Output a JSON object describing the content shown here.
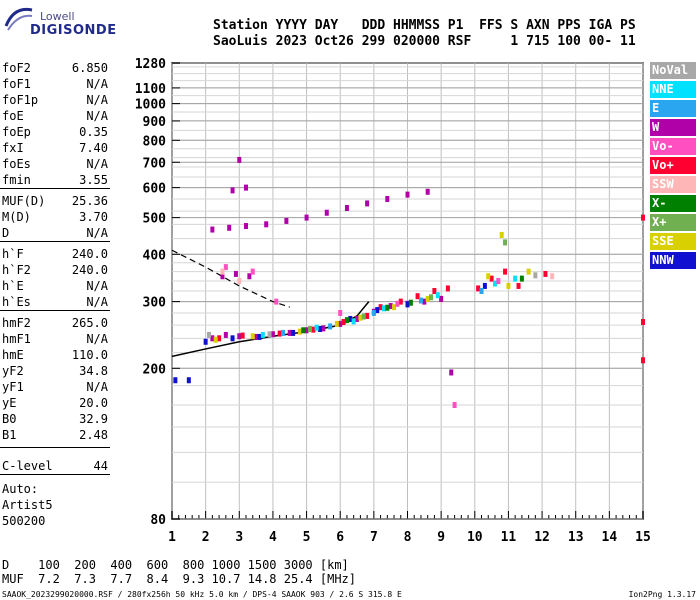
{
  "logo": {
    "top": "Lowell",
    "bottom": "DIGISONDE"
  },
  "header": {
    "line1": "Station YYYY DAY   DDD HHMMSS P1  FFS S AXN PPS IGA PS",
    "line2": "SaoLuis 2023 Oct26 299 020000 RSF     1 715 100 00- 11"
  },
  "params": [
    {
      "label": "foF2",
      "value": "6.850"
    },
    {
      "label": "foF1",
      "value": "N/A"
    },
    {
      "label": "foF1p",
      "value": "N/A"
    },
    {
      "label": "foE",
      "value": "N/A"
    },
    {
      "label": "foEp",
      "value": "0.35"
    },
    {
      "label": "fxI",
      "value": "7.40"
    },
    {
      "label": "foEs",
      "value": "N/A"
    },
    {
      "label": "fmin",
      "value": "3.55"
    },
    {
      "label": "MUF(D)",
      "value": "25.36"
    },
    {
      "label": "M(D)",
      "value": "3.70"
    },
    {
      "label": "D",
      "value": "N/A"
    },
    {
      "label": "h`F",
      "value": "240.0"
    },
    {
      "label": "h`F2",
      "value": "240.0"
    },
    {
      "label": "h`E",
      "value": "N/A"
    },
    {
      "label": "h`Es",
      "value": "N/A"
    },
    {
      "label": "hmF2",
      "value": "265.0"
    },
    {
      "label": "hmF1",
      "value": "N/A"
    },
    {
      "label": "hmE",
      "value": "110.0"
    },
    {
      "label": "yF2",
      "value": "34.8"
    },
    {
      "label": "yF1",
      "value": "N/A"
    },
    {
      "label": "yE",
      "value": "20.0"
    },
    {
      "label": "B0",
      "value": "32.9"
    },
    {
      "label": "B1",
      "value": "2.48"
    },
    {
      "label": "C-level",
      "value": "44"
    }
  ],
  "auto": {
    "line1": "Auto:",
    "line2": "Artist5",
    "line3": "500200"
  },
  "legend": [
    {
      "label": "NoVal",
      "color": "#a8a8a8"
    },
    {
      "label": "NNE",
      "color": "#00e0ff"
    },
    {
      "label": "E",
      "color": "#2aa5f0"
    },
    {
      "label": "W",
      "color": "#b000a8"
    },
    {
      "label": "Vo-",
      "color": "#ff4fc0"
    },
    {
      "label": "Vo+",
      "color": "#ff0030"
    },
    {
      "label": "SSW",
      "color": "#ffb6b6"
    },
    {
      "label": "X-",
      "color": "#008000"
    },
    {
      "label": "X+",
      "color": "#70b050"
    },
    {
      "label": "SSE",
      "color": "#d8d000"
    },
    {
      "label": "NNW",
      "color": "#1010d0"
    }
  ],
  "bottom": {
    "d_row": "D    100  200  400  600  800 1000 1500 3000 [km]",
    "muf_row": "MUF  7.2  7.3  7.7  8.4  9.3 10.7 14.8 25.4 [MHz]"
  },
  "footer": {
    "left": "SAAOK_2023299020000.RSF / 280fx256h 50 kHz 5.0 km / DPS-4 SAAOK 903 / 2.6 S 315.8 E",
    "right": "Ion2Png 1.3.17"
  },
  "chart_data": {
    "type": "scatter",
    "x_ticks": [
      1,
      2,
      3,
      4,
      5,
      6,
      7,
      8,
      9,
      10,
      11,
      12,
      13,
      14,
      15
    ],
    "y_ticks": [
      80,
      200,
      300,
      400,
      500,
      600,
      700,
      800,
      900,
      1000,
      1100,
      1280
    ],
    "xlim": [
      1,
      15
    ],
    "ylim": [
      80,
      1280
    ],
    "y_scale": "log",
    "grid": true,
    "legend_position": "right",
    "series": [
      {
        "name": "W",
        "color": "#b000a8",
        "points": [
          [
            2.2,
            240
          ],
          [
            2.6,
            245
          ],
          [
            3.0,
            243
          ],
          [
            3.5,
            242
          ],
          [
            4.0,
            246
          ],
          [
            4.5,
            248
          ],
          [
            5.0,
            252
          ],
          [
            5.5,
            255
          ],
          [
            6.0,
            262
          ],
          [
            6.5,
            270
          ],
          [
            7.0,
            282
          ],
          [
            7.5,
            292
          ],
          [
            8.0,
            296
          ],
          [
            8.5,
            300
          ],
          [
            9.0,
            305
          ],
          [
            2.5,
            350
          ],
          [
            2.9,
            355
          ],
          [
            3.3,
            350
          ],
          [
            2.2,
            465
          ],
          [
            2.7,
            470
          ],
          [
            3.2,
            475
          ],
          [
            3.8,
            480
          ],
          [
            4.4,
            490
          ],
          [
            5.0,
            500
          ],
          [
            5.6,
            515
          ],
          [
            6.2,
            530
          ],
          [
            6.8,
            545
          ],
          [
            7.4,
            560
          ],
          [
            8.0,
            575
          ],
          [
            8.6,
            585
          ],
          [
            3.0,
            710
          ],
          [
            2.8,
            590
          ],
          [
            3.2,
            600
          ],
          [
            9.3,
            195
          ]
        ]
      },
      {
        "name": "Vo+",
        "color": "#ff0030",
        "points": [
          [
            2.4,
            240
          ],
          [
            3.1,
            244
          ],
          [
            4.2,
            247
          ],
          [
            5.2,
            253
          ],
          [
            6.1,
            265
          ],
          [
            6.8,
            275
          ],
          [
            7.2,
            290
          ],
          [
            7.8,
            300
          ],
          [
            8.3,
            310
          ],
          [
            8.8,
            320
          ],
          [
            9.2,
            325
          ],
          [
            10.1,
            325
          ],
          [
            10.5,
            345
          ],
          [
            10.9,
            360
          ],
          [
            11.3,
            330
          ],
          [
            12.1,
            355
          ],
          [
            15.0,
            500
          ],
          [
            15.0,
            265
          ],
          [
            15.0,
            210
          ]
        ]
      },
      {
        "name": "NNW",
        "color": "#1010d0",
        "points": [
          [
            2.0,
            235
          ],
          [
            2.8,
            240
          ],
          [
            3.6,
            242
          ],
          [
            4.6,
            248
          ],
          [
            5.4,
            254
          ],
          [
            6.3,
            270
          ],
          [
            7.1,
            285
          ],
          [
            8.0,
            295
          ],
          [
            1.1,
            186
          ],
          [
            1.5,
            186
          ],
          [
            10.3,
            330
          ]
        ]
      },
      {
        "name": "SSE",
        "color": "#d8d000",
        "points": [
          [
            2.3,
            238
          ],
          [
            3.4,
            243
          ],
          [
            4.8,
            250
          ],
          [
            5.9,
            262
          ],
          [
            6.6,
            272
          ],
          [
            7.6,
            290
          ],
          [
            8.6,
            305
          ],
          [
            10.4,
            350
          ],
          [
            10.8,
            450
          ],
          [
            11.0,
            330
          ],
          [
            11.6,
            360
          ]
        ]
      },
      {
        "name": "NNE",
        "color": "#00e0ff",
        "points": [
          [
            3.7,
            245
          ],
          [
            5.3,
            256
          ],
          [
            6.4,
            266
          ],
          [
            7.3,
            288
          ],
          [
            8.9,
            312
          ],
          [
            10.6,
            335
          ],
          [
            11.2,
            345
          ]
        ]
      },
      {
        "name": "E",
        "color": "#2aa5f0",
        "points": [
          [
            4.3,
            248
          ],
          [
            5.7,
            258
          ],
          [
            7.0,
            280
          ],
          [
            8.4,
            302
          ],
          [
            10.2,
            320
          ]
        ]
      },
      {
        "name": "Vo-",
        "color": "#ff4fc0",
        "points": [
          [
            2.6,
            370
          ],
          [
            3.4,
            360
          ],
          [
            4.1,
            300
          ],
          [
            6.0,
            280
          ],
          [
            7.7,
            296
          ],
          [
            9.4,
            160
          ],
          [
            10.7,
            340
          ]
        ]
      },
      {
        "name": "X-",
        "color": "#008000",
        "points": [
          [
            4.9,
            252
          ],
          [
            6.2,
            268
          ],
          [
            7.4,
            289
          ],
          [
            8.1,
            298
          ],
          [
            11.4,
            345
          ]
        ]
      },
      {
        "name": "X+",
        "color": "#70b050",
        "points": [
          [
            5.1,
            254
          ],
          [
            6.7,
            274
          ],
          [
            8.7,
            308
          ],
          [
            10.9,
            430
          ]
        ]
      },
      {
        "name": "SSW",
        "color": "#ffb6b6",
        "points": [
          [
            2.5,
            360
          ],
          [
            3.0,
            340
          ],
          [
            12.3,
            350
          ]
        ]
      },
      {
        "name": "NoVal",
        "color": "#a8a8a8",
        "points": [
          [
            2.1,
            245
          ],
          [
            3.9,
            246
          ],
          [
            11.8,
            352
          ]
        ]
      }
    ],
    "traced_profile": {
      "points": [
        [
          1.0,
          215
        ],
        [
          2.0,
          225
        ],
        [
          3.0,
          235
        ],
        [
          4.0,
          243
        ],
        [
          5.0,
          250
        ],
        [
          6.0,
          260
        ],
        [
          6.5,
          275
        ],
        [
          6.85,
          300
        ]
      ]
    },
    "dashed_profile": {
      "points": [
        [
          1.0,
          410
        ],
        [
          2.0,
          370
        ],
        [
          3.0,
          330
        ],
        [
          4.0,
          300
        ],
        [
          4.5,
          290
        ]
      ]
    }
  }
}
